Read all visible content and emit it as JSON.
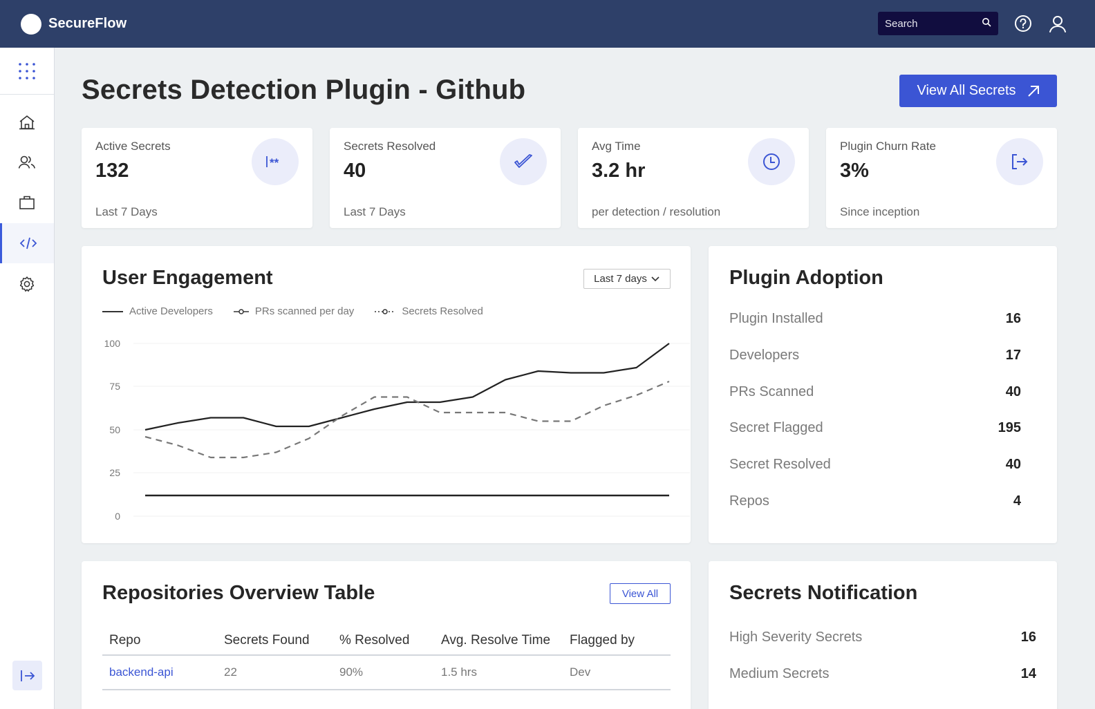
{
  "app": {
    "name": "SecureFlow"
  },
  "header": {
    "search_placeholder": "Search",
    "icons": [
      "search-icon",
      "help-icon",
      "user-icon"
    ]
  },
  "sidebar": {
    "items": [
      {
        "name": "apps-grid",
        "icon": "grid-dots-icon",
        "active": false
      },
      {
        "name": "home",
        "icon": "home-icon",
        "active": false
      },
      {
        "name": "users",
        "icon": "users-icon",
        "active": false
      },
      {
        "name": "projects",
        "icon": "briefcase-icon",
        "active": false
      },
      {
        "name": "code",
        "icon": "code-icon",
        "active": true
      },
      {
        "name": "settings",
        "icon": "gear-icon",
        "active": false
      }
    ],
    "collapse_icon": "expand-arrow-icon"
  },
  "page": {
    "title": "Secrets Detection Plugin - Github",
    "primary_action": "View All Secrets"
  },
  "stats": [
    {
      "label": "Active Secrets",
      "value": "132",
      "sub": "Last 7 Days",
      "icon": "masked-secret-icon"
    },
    {
      "label": "Secrets Resolved",
      "value": "40",
      "sub": "Last 7 Days",
      "icon": "check-icon"
    },
    {
      "label": "Avg Time",
      "value": "3.2 hr",
      "sub": "per detection / resolution",
      "icon": "clock-icon"
    },
    {
      "label": "Plugin Churn Rate",
      "value": "3%",
      "sub": "Since inception",
      "icon": "exit-icon"
    }
  ],
  "engagement": {
    "title": "User Engagement",
    "range": "Last 7 days",
    "legend": [
      "Active Developers",
      "PRs scanned per day",
      "Secrets Resolved"
    ]
  },
  "adoption": {
    "title": "Plugin Adoption",
    "rows": [
      {
        "label": "Plugin Installed",
        "value": "16"
      },
      {
        "label": "Developers",
        "value": "17"
      },
      {
        "label": "PRs Scanned",
        "value": "40"
      },
      {
        "label": "Secret Flagged",
        "value": "195"
      },
      {
        "label": "Secret Resolved",
        "value": "40"
      },
      {
        "label": "Repos",
        "value": "4"
      }
    ]
  },
  "repos": {
    "title": "Repositories Overview Table",
    "view_all": "View All",
    "columns": [
      "Repo",
      "Secrets Found",
      "% Resolved",
      "Avg. Resolve Time",
      "Flagged by"
    ],
    "rows": [
      {
        "repo": "backend-api",
        "secrets_found": "22",
        "resolved": "90%",
        "avg_time": "1.5 hrs",
        "flagged_by": "Dev"
      }
    ]
  },
  "notifications": {
    "title": "Secrets Notification",
    "rows": [
      {
        "label": "High Severity Secrets",
        "value": "16"
      },
      {
        "label": "Medium Secrets",
        "value": "14"
      }
    ]
  },
  "colors": {
    "header_bg": "#2e4069",
    "accent": "#3b55d4",
    "page_bg": "#edf0f2",
    "search_bg": "#110d3f"
  },
  "chart_data": {
    "type": "line",
    "title": "User Engagement",
    "xlabel": "",
    "ylabel": "",
    "ylim": [
      0,
      100
    ],
    "yticks": [
      0,
      25,
      50,
      75,
      100
    ],
    "grid": true,
    "legend_position": "top-left",
    "x": [
      0,
      1,
      2,
      3,
      4,
      5,
      6,
      7,
      8,
      9,
      10,
      11,
      12,
      13,
      14,
      15,
      16
    ],
    "series": [
      {
        "name": "Active Developers",
        "style": "solid",
        "values": [
          50,
          54,
          57,
          57,
          52,
          52,
          57,
          62,
          66,
          66,
          69,
          79,
          84,
          83,
          83,
          86,
          100
        ]
      },
      {
        "name": "PRs scanned per day",
        "style": "solid",
        "values": [
          12,
          12,
          12,
          12,
          12,
          12,
          12,
          12,
          12,
          12,
          12,
          12,
          12,
          12,
          12,
          12,
          12
        ]
      },
      {
        "name": "Secrets Resolved",
        "style": "dashed",
        "values": [
          46,
          41,
          34,
          34,
          37,
          45,
          58,
          69,
          69,
          60,
          60,
          60,
          55,
          55,
          64,
          70,
          78
        ]
      }
    ]
  }
}
